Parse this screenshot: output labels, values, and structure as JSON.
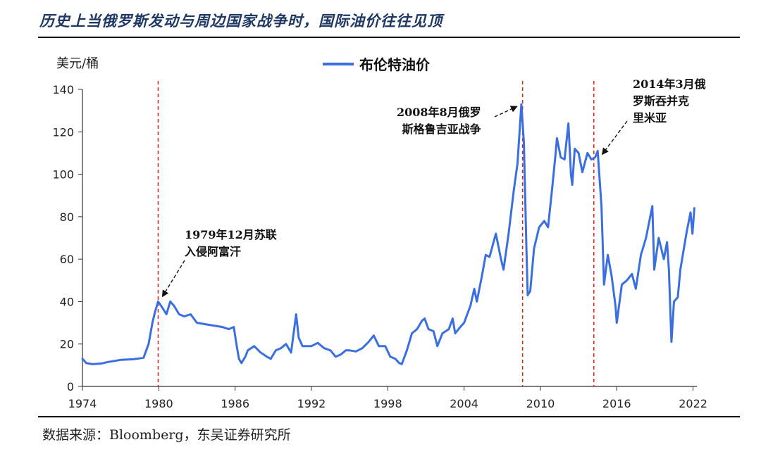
{
  "header": {
    "title": "历史上当俄罗斯发动与周边国家战争时，国际油价往往见顶"
  },
  "footer": {
    "source": "数据来源：Bloomberg，东吴证券研究所"
  },
  "colors": {
    "series": "#3b6fe0",
    "event_line": "#e02020",
    "title": "#1f3864"
  },
  "chart_data": {
    "type": "line",
    "unit_label": "美元/桶",
    "legend": [
      "布伦特油价"
    ],
    "ylim": [
      0,
      140
    ],
    "yticks": [
      0,
      20,
      40,
      60,
      80,
      100,
      120,
      140
    ],
    "xlim": [
      1974,
      2022.3
    ],
    "xticks": [
      1974,
      1980,
      1986,
      1992,
      1998,
      2004,
      2010,
      2016,
      2022
    ],
    "series": [
      {
        "name": "布伦特油价",
        "points": [
          [
            1974.0,
            13
          ],
          [
            1974.3,
            11
          ],
          [
            1974.8,
            10.5
          ],
          [
            1975.5,
            10.8
          ],
          [
            1976.0,
            11.5
          ],
          [
            1977.0,
            12.5
          ],
          [
            1978.0,
            12.8
          ],
          [
            1978.8,
            13.5
          ],
          [
            1979.2,
            20
          ],
          [
            1979.5,
            30
          ],
          [
            1979.7,
            35
          ],
          [
            1979.95,
            40
          ],
          [
            1980.3,
            37
          ],
          [
            1980.6,
            34
          ],
          [
            1980.9,
            40
          ],
          [
            1981.2,
            38
          ],
          [
            1981.6,
            34
          ],
          [
            1982.0,
            33
          ],
          [
            1982.5,
            34
          ],
          [
            1983.0,
            30
          ],
          [
            1983.5,
            29.5
          ],
          [
            1984.0,
            29
          ],
          [
            1984.5,
            28.5
          ],
          [
            1985.0,
            28
          ],
          [
            1985.5,
            27
          ],
          [
            1985.9,
            28
          ],
          [
            1986.1,
            20
          ],
          [
            1986.3,
            13
          ],
          [
            1986.5,
            11
          ],
          [
            1986.8,
            14
          ],
          [
            1987.0,
            17
          ],
          [
            1987.5,
            19
          ],
          [
            1988.0,
            16
          ],
          [
            1988.5,
            14
          ],
          [
            1988.8,
            13
          ],
          [
            1989.2,
            17
          ],
          [
            1989.6,
            18
          ],
          [
            1990.0,
            20
          ],
          [
            1990.4,
            16
          ],
          [
            1990.6,
            25
          ],
          [
            1990.8,
            34
          ],
          [
            1991.0,
            23
          ],
          [
            1991.3,
            19
          ],
          [
            1992.0,
            19
          ],
          [
            1992.5,
            20.5
          ],
          [
            1993.0,
            18
          ],
          [
            1993.5,
            17
          ],
          [
            1993.9,
            14
          ],
          [
            1994.3,
            15
          ],
          [
            1994.7,
            17
          ],
          [
            1995.0,
            17
          ],
          [
            1995.5,
            16.5
          ],
          [
            1996.0,
            18
          ],
          [
            1996.5,
            21
          ],
          [
            1996.9,
            24
          ],
          [
            1997.3,
            19
          ],
          [
            1997.8,
            19
          ],
          [
            1998.2,
            14
          ],
          [
            1998.6,
            13
          ],
          [
            1998.9,
            11
          ],
          [
            1999.1,
            10.5
          ],
          [
            1999.5,
            17
          ],
          [
            1999.9,
            25
          ],
          [
            2000.3,
            27
          ],
          [
            2000.7,
            31
          ],
          [
            2000.9,
            32
          ],
          [
            2001.2,
            27
          ],
          [
            2001.6,
            26
          ],
          [
            2001.9,
            19
          ],
          [
            2002.3,
            25
          ],
          [
            2002.8,
            27
          ],
          [
            2003.1,
            32
          ],
          [
            2003.3,
            25
          ],
          [
            2003.7,
            28
          ],
          [
            2004.0,
            30
          ],
          [
            2004.5,
            38
          ],
          [
            2004.8,
            46
          ],
          [
            2005.0,
            40
          ],
          [
            2005.4,
            52
          ],
          [
            2005.7,
            62
          ],
          [
            2006.0,
            61
          ],
          [
            2006.5,
            72
          ],
          [
            2006.9,
            60
          ],
          [
            2007.1,
            55
          ],
          [
            2007.5,
            72
          ],
          [
            2007.9,
            92
          ],
          [
            2008.2,
            105
          ],
          [
            2008.5,
            133
          ],
          [
            2008.7,
            115
          ],
          [
            2008.9,
            65
          ],
          [
            2009.0,
            43
          ],
          [
            2009.2,
            45
          ],
          [
            2009.5,
            65
          ],
          [
            2009.9,
            75
          ],
          [
            2010.3,
            78
          ],
          [
            2010.6,
            75
          ],
          [
            2010.9,
            92
          ],
          [
            2011.2,
            110
          ],
          [
            2011.3,
            117
          ],
          [
            2011.6,
            108
          ],
          [
            2011.9,
            107
          ],
          [
            2012.2,
            124
          ],
          [
            2012.4,
            100
          ],
          [
            2012.5,
            95
          ],
          [
            2012.7,
            112
          ],
          [
            2013.0,
            110
          ],
          [
            2013.3,
            101
          ],
          [
            2013.7,
            110
          ],
          [
            2014.0,
            107
          ],
          [
            2014.3,
            108
          ],
          [
            2014.5,
            111
          ],
          [
            2014.8,
            85
          ],
          [
            2015.0,
            48
          ],
          [
            2015.3,
            62
          ],
          [
            2015.6,
            52
          ],
          [
            2015.9,
            38
          ],
          [
            2016.0,
            30
          ],
          [
            2016.4,
            48
          ],
          [
            2016.8,
            50
          ],
          [
            2017.2,
            53
          ],
          [
            2017.5,
            46
          ],
          [
            2017.9,
            62
          ],
          [
            2018.3,
            70
          ],
          [
            2018.8,
            85
          ],
          [
            2018.95,
            55
          ],
          [
            2019.3,
            70
          ],
          [
            2019.7,
            60
          ],
          [
            2019.95,
            68
          ],
          [
            2020.1,
            55
          ],
          [
            2020.3,
            21
          ],
          [
            2020.5,
            40
          ],
          [
            2020.8,
            42
          ],
          [
            2021.0,
            55
          ],
          [
            2021.5,
            73
          ],
          [
            2021.8,
            82
          ],
          [
            2021.95,
            72
          ],
          [
            2022.1,
            84
          ]
        ]
      }
    ],
    "events": [
      {
        "x": 1979.95,
        "label": "1979年12月苏联\n入侵阿富汗"
      },
      {
        "x": 2008.6,
        "label": "2008年8月俄罗\n斯格鲁吉亚战争"
      },
      {
        "x": 2014.2,
        "label": "2014年3月俄\n罗斯吞并克\n里米亚"
      }
    ]
  }
}
